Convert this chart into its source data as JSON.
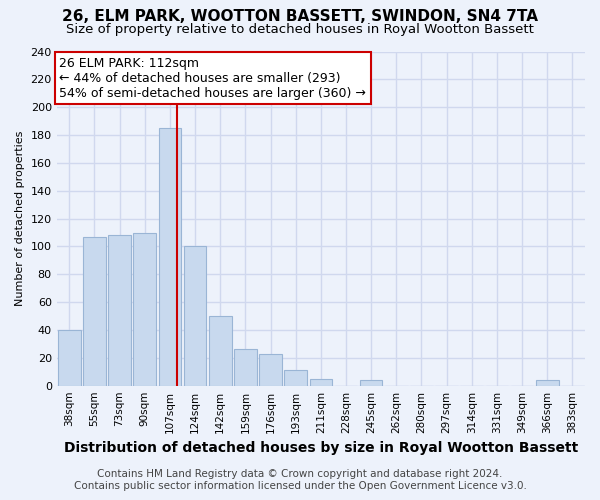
{
  "title": "26, ELM PARK, WOOTTON BASSETT, SWINDON, SN4 7TA",
  "subtitle": "Size of property relative to detached houses in Royal Wootton Bassett",
  "xlabel": "Distribution of detached houses by size in Royal Wootton Bassett",
  "ylabel": "Number of detached properties",
  "footer_line1": "Contains HM Land Registry data © Crown copyright and database right 2024.",
  "footer_line2": "Contains public sector information licensed under the Open Government Licence v3.0.",
  "categories": [
    "38sqm",
    "55sqm",
    "73sqm",
    "90sqm",
    "107sqm",
    "124sqm",
    "142sqm",
    "159sqm",
    "176sqm",
    "193sqm",
    "211sqm",
    "228sqm",
    "245sqm",
    "262sqm",
    "280sqm",
    "297sqm",
    "314sqm",
    "331sqm",
    "349sqm",
    "366sqm",
    "383sqm"
  ],
  "values": [
    40,
    107,
    108,
    110,
    185,
    100,
    50,
    26,
    23,
    11,
    5,
    0,
    4,
    0,
    0,
    0,
    0,
    0,
    0,
    4,
    0
  ],
  "bar_color": "#c8d9ee",
  "bar_edge_color": "#9ab5d5",
  "property_line_x": 4.3,
  "annotation_title": "26 ELM PARK: 112sqm",
  "annotation_line1": "← 44% of detached houses are smaller (293)",
  "annotation_line2": "54% of semi-detached houses are larger (360) →",
  "annotation_box_color": "#ffffff",
  "annotation_box_edge_color": "#cc0000",
  "property_line_color": "#cc0000",
  "ylim": [
    0,
    240
  ],
  "yticks": [
    0,
    20,
    40,
    60,
    80,
    100,
    120,
    140,
    160,
    180,
    200,
    220,
    240
  ],
  "bg_color": "#edf2fb",
  "grid_color": "#d0d8ee",
  "title_fontsize": 11,
  "subtitle_fontsize": 9.5,
  "annotation_fontsize": 9,
  "ylabel_fontsize": 8,
  "xlabel_fontsize": 10,
  "footer_fontsize": 7.5
}
